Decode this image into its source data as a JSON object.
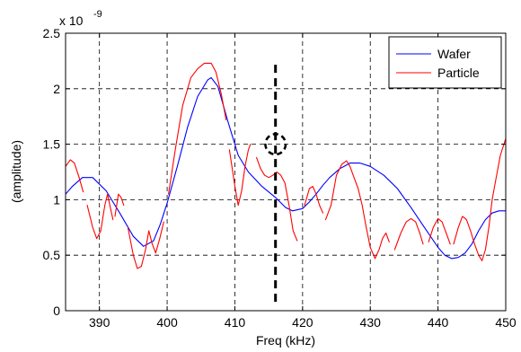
{
  "chart_data": {
    "type": "line",
    "title": "",
    "xlabel": "Freq (kHz)",
    "ylabel": "(amplitude)",
    "xlim": [
      385,
      450
    ],
    "ylim": [
      0,
      2.5
    ],
    "y_scale_label": "x 10",
    "y_scale_exponent": "-9",
    "x_ticks": [
      390,
      400,
      410,
      420,
      430,
      440,
      450
    ],
    "y_ticks": [
      0,
      0.5,
      1,
      1.5,
      2,
      2.5
    ],
    "x_tick_labels": [
      "390",
      "400",
      "410",
      "420",
      "430",
      "440",
      "450"
    ],
    "y_tick_labels": [
      "0",
      "0.5",
      "1",
      "1.5",
      "2",
      "2.5"
    ],
    "grid": true,
    "legend_position": "top-right",
    "series": [
      {
        "name": "Wafer",
        "color": "#0000ff",
        "segments": [
          [
            [
              385,
              1.05
            ],
            [
              386,
              1.12
            ],
            [
              387.5,
              1.2
            ],
            [
              389,
              1.2
            ],
            [
              391,
              1.08
            ],
            [
              393,
              0.88
            ],
            [
              395,
              0.67
            ],
            [
              396.5,
              0.58
            ],
            [
              398,
              0.63
            ],
            [
              399,
              0.78
            ],
            [
              400,
              0.97
            ],
            [
              401.5,
              1.3
            ],
            [
              403,
              1.65
            ],
            [
              404.5,
              1.93
            ],
            [
              406,
              2.08
            ],
            [
              406.5,
              2.1
            ],
            [
              407.5,
              2.02
            ],
            [
              409,
              1.7
            ],
            [
              410.5,
              1.4
            ],
            [
              412,
              1.25
            ],
            [
              414,
              1.12
            ],
            [
              416,
              1.02
            ],
            [
              417.5,
              0.93
            ],
            [
              418.5,
              0.9
            ],
            [
              420,
              0.92
            ],
            [
              421,
              0.98
            ],
            [
              422,
              1.05
            ],
            [
              423,
              1.13
            ],
            [
              424,
              1.2
            ],
            [
              425.5,
              1.28
            ],
            [
              427,
              1.33
            ],
            [
              428.5,
              1.33
            ],
            [
              430,
              1.3
            ],
            [
              432,
              1.22
            ],
            [
              434,
              1.1
            ],
            [
              436,
              0.93
            ],
            [
              438,
              0.75
            ],
            [
              440,
              0.57
            ],
            [
              441,
              0.5
            ],
            [
              442,
              0.47
            ],
            [
              443,
              0.48
            ],
            [
              444,
              0.52
            ],
            [
              445,
              0.6
            ],
            [
              446,
              0.72
            ],
            [
              447,
              0.82
            ],
            [
              448,
              0.88
            ],
            [
              449,
              0.9
            ],
            [
              450,
              0.9
            ]
          ]
        ]
      },
      {
        "name": "Particle",
        "color": "#ff0000",
        "segments": [
          [
            [
              385,
              1.3
            ],
            [
              385.7,
              1.36
            ],
            [
              386.3,
              1.33
            ],
            [
              387,
              1.2
            ],
            [
              387.6,
              1.07
            ]
          ],
          [
            [
              388.2,
              0.95
            ],
            [
              389,
              0.75
            ],
            [
              389.6,
              0.65
            ],
            [
              390.2,
              0.72
            ],
            [
              390.8,
              0.95
            ],
            [
              391.2,
              1.05
            ],
            [
              391.6,
              0.93
            ],
            [
              392,
              0.82
            ]
          ],
          [
            [
              392.3,
              0.85
            ],
            [
              392.8,
              1.05
            ],
            [
              393.2,
              1.02
            ],
            [
              393.6,
              0.95
            ]
          ],
          [
            [
              394.2,
              0.75
            ],
            [
              395,
              0.5
            ],
            [
              395.6,
              0.38
            ],
            [
              396.2,
              0.4
            ],
            [
              396.8,
              0.55
            ],
            [
              397.3,
              0.72
            ],
            [
              397.8,
              0.6
            ],
            [
              398.3,
              0.52
            ],
            [
              398.9,
              0.65
            ],
            [
              399.5,
              0.8
            ]
          ],
          [
            [
              400.2,
              1.05
            ],
            [
              401.2,
              1.45
            ],
            [
              402.3,
              1.85
            ],
            [
              403.5,
              2.1
            ],
            [
              404.5,
              2.18
            ],
            [
              405.5,
              2.23
            ],
            [
              406.5,
              2.23
            ],
            [
              407.2,
              2.15
            ],
            [
              408,
              1.95
            ],
            [
              408.7,
              1.72
            ]
          ],
          [
            [
              409.2,
              1.45
            ],
            [
              410,
              1.12
            ],
            [
              410.5,
              0.95
            ],
            [
              411,
              1.08
            ],
            [
              411.5,
              1.3
            ],
            [
              412,
              1.45
            ],
            [
              412.3,
              1.5
            ]
          ],
          [
            [
              413.2,
              1.38
            ],
            [
              413.8,
              1.28
            ],
            [
              414.4,
              1.22
            ],
            [
              415,
              1.2
            ],
            [
              415.6,
              1.22
            ],
            [
              416.2,
              1.25
            ],
            [
              416.8,
              1.22
            ],
            [
              417.4,
              1.15
            ],
            [
              418,
              0.95
            ],
            [
              418.6,
              0.72
            ],
            [
              419.2,
              0.63
            ]
          ],
          [
            [
              420.3,
              0.95
            ],
            [
              421,
              1.1
            ],
            [
              421.5,
              1.12
            ],
            [
              422,
              1.05
            ],
            [
              422.5,
              0.95
            ],
            [
              423,
              0.88
            ]
          ],
          [
            [
              423.4,
              0.82
            ],
            [
              424.2,
              0.95
            ],
            [
              425,
              1.22
            ],
            [
              425.8,
              1.32
            ],
            [
              426.5,
              1.35
            ],
            [
              427,
              1.3
            ],
            [
              427.6,
              1.2
            ],
            [
              428.2,
              1.1
            ],
            [
              428.8,
              0.95
            ],
            [
              429.4,
              0.75
            ],
            [
              430,
              0.57
            ],
            [
              430.7,
              0.47
            ],
            [
              431.3,
              0.55
            ],
            [
              431.8,
              0.65
            ],
            [
              432.3,
              0.7
            ],
            [
              432.8,
              0.62
            ]
          ],
          [
            [
              433.6,
              0.55
            ],
            [
              434.5,
              0.7
            ],
            [
              435.3,
              0.8
            ],
            [
              436,
              0.83
            ],
            [
              436.7,
              0.8
            ],
            [
              437.3,
              0.7
            ],
            [
              437.8,
              0.6
            ]
          ],
          [
            [
              438.6,
              0.62
            ],
            [
              439.3,
              0.75
            ],
            [
              440,
              0.83
            ],
            [
              440.6,
              0.8
            ],
            [
              441.2,
              0.7
            ],
            [
              441.8,
              0.6
            ]
          ],
          [
            [
              442.3,
              0.6
            ],
            [
              443,
              0.75
            ],
            [
              443.6,
              0.85
            ],
            [
              444.2,
              0.82
            ],
            [
              444.8,
              0.72
            ],
            [
              445.4,
              0.6
            ],
            [
              446,
              0.5
            ],
            [
              446.5,
              0.45
            ],
            [
              447,
              0.55
            ],
            [
              447.5,
              0.75
            ],
            [
              448,
              1.0
            ],
            [
              448.6,
              1.2
            ],
            [
              449.2,
              1.4
            ],
            [
              450,
              1.55
            ]
          ]
        ]
      }
    ],
    "annotations": [
      {
        "type": "vertical-dashed-line",
        "x": 416,
        "y_range": [
          0.08,
          2.25
        ],
        "color": "#000000"
      },
      {
        "type": "dashed-circle",
        "x": 416,
        "y": 1.5,
        "radius_x_units": 1.5,
        "color": "#000000"
      }
    ]
  }
}
